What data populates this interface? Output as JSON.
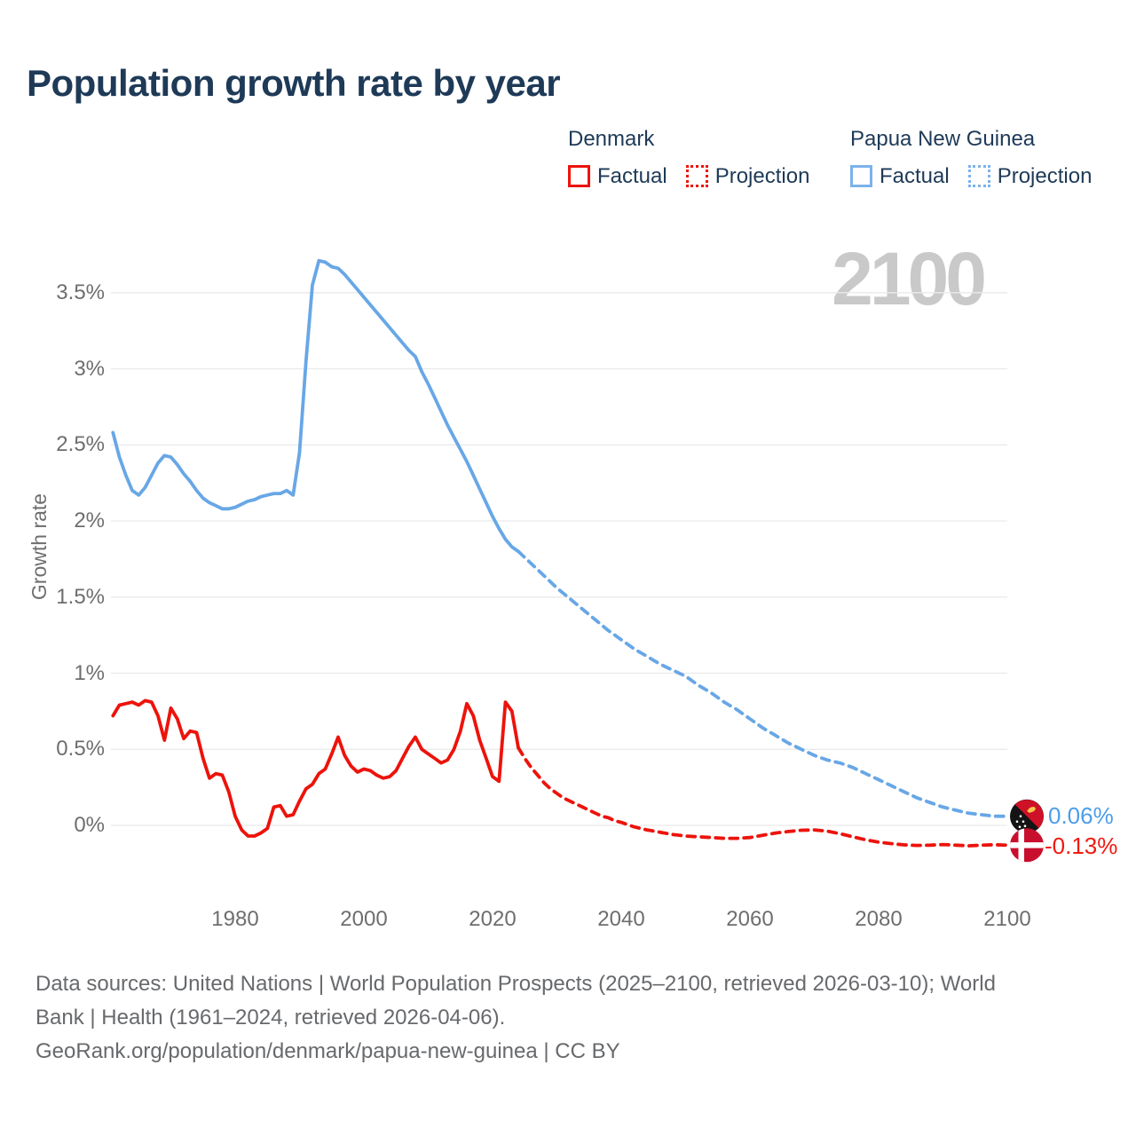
{
  "title": "Population growth rate by year",
  "watermark": "2100",
  "legend": {
    "groups": [
      {
        "name": "Denmark",
        "color": "#ec130b",
        "items": [
          {
            "label": "Factual",
            "style": "solid"
          },
          {
            "label": "Projection",
            "style": "dotted"
          }
        ]
      },
      {
        "name": "Papua New Guinea",
        "color": "#68a7e6",
        "items": [
          {
            "label": "Factual",
            "style": "solid"
          },
          {
            "label": "Projection",
            "style": "dotted"
          }
        ]
      }
    ]
  },
  "end_markers": [
    {
      "flag": "papua-new-guinea",
      "country": "Papua New Guinea",
      "value": 0.06,
      "label": "0.06%",
      "label_color": "#4d9de9"
    },
    {
      "flag": "denmark",
      "country": "Denmark",
      "value": -0.13,
      "label": "-0.13%",
      "label_color": "#f2190f"
    }
  ],
  "footer": {
    "lines": [
      "Data sources: United Nations | World Population Prospects (2025–2100, retrieved 2026-03-10); World",
      "Bank | Health (1961–2024, retrieved 2026-04-06).",
      "GeoRank.org/population/denmark/papua-new-guinea | CC BY"
    ]
  },
  "chart_data": {
    "type": "line",
    "title": "Population growth rate by year",
    "ylabel": "Growth rate",
    "xlabel": "",
    "grid": "horizontal",
    "legend_position": "top-right",
    "xlim": [
      1958,
      2114
    ],
    "ylim": [
      -0.35,
      3.9
    ],
    "x_ticks": [
      {
        "value": 1980,
        "label": "1980"
      },
      {
        "value": 2000,
        "label": "2000"
      },
      {
        "value": 2020,
        "label": "2020"
      },
      {
        "value": 2040,
        "label": "2040"
      },
      {
        "value": 2060,
        "label": "2060"
      },
      {
        "value": 2080,
        "label": "2080"
      },
      {
        "value": 2100,
        "label": "2100"
      }
    ],
    "y_ticks": [
      {
        "value": 0,
        "label": "0%"
      },
      {
        "value": 0.5,
        "label": "0.5%"
      },
      {
        "value": 1,
        "label": "1%"
      },
      {
        "value": 1.5,
        "label": "1.5%"
      },
      {
        "value": 2,
        "label": "2%"
      },
      {
        "value": 2.5,
        "label": "2.5%"
      },
      {
        "value": 3,
        "label": "3%"
      },
      {
        "value": 3.5,
        "label": "3.5%"
      }
    ],
    "series": [
      {
        "id": "png-factual",
        "name": "Papua New Guinea — Factual",
        "style": "factual",
        "color": "#68a7e6",
        "points": [
          [
            1961,
            2.58
          ],
          [
            1962,
            2.42
          ],
          [
            1963,
            2.3
          ],
          [
            1964,
            2.2
          ],
          [
            1965,
            2.17
          ],
          [
            1966,
            2.22
          ],
          [
            1967,
            2.3
          ],
          [
            1968,
            2.38
          ],
          [
            1969,
            2.43
          ],
          [
            1970,
            2.42
          ],
          [
            1971,
            2.37
          ],
          [
            1972,
            2.31
          ],
          [
            1973,
            2.26
          ],
          [
            1974,
            2.2
          ],
          [
            1975,
            2.15
          ],
          [
            1976,
            2.12
          ],
          [
            1977,
            2.1
          ],
          [
            1978,
            2.08
          ],
          [
            1979,
            2.08
          ],
          [
            1980,
            2.09
          ],
          [
            1981,
            2.11
          ],
          [
            1982,
            2.13
          ],
          [
            1983,
            2.14
          ],
          [
            1984,
            2.16
          ],
          [
            1985,
            2.17
          ],
          [
            1986,
            2.18
          ],
          [
            1987,
            2.18
          ],
          [
            1988,
            2.2
          ],
          [
            1989,
            2.17
          ],
          [
            1990,
            2.45
          ],
          [
            1991,
            3.05
          ],
          [
            1992,
            3.55
          ],
          [
            1993,
            3.71
          ],
          [
            1994,
            3.7
          ],
          [
            1995,
            3.67
          ],
          [
            1996,
            3.66
          ],
          [
            1997,
            3.62
          ],
          [
            1998,
            3.57
          ],
          [
            1999,
            3.52
          ],
          [
            2000,
            3.47
          ],
          [
            2001,
            3.42
          ],
          [
            2002,
            3.37
          ],
          [
            2003,
            3.32
          ],
          [
            2004,
            3.27
          ],
          [
            2005,
            3.22
          ],
          [
            2006,
            3.17
          ],
          [
            2007,
            3.12
          ],
          [
            2008,
            3.08
          ],
          [
            2009,
            2.98
          ],
          [
            2010,
            2.9
          ],
          [
            2011,
            2.81
          ],
          [
            2012,
            2.72
          ],
          [
            2013,
            2.63
          ],
          [
            2014,
            2.55
          ],
          [
            2015,
            2.47
          ],
          [
            2016,
            2.39
          ],
          [
            2017,
            2.3
          ],
          [
            2018,
            2.21
          ],
          [
            2019,
            2.12
          ],
          [
            2020,
            2.03
          ],
          [
            2021,
            1.95
          ],
          [
            2022,
            1.88
          ],
          [
            2023,
            1.83
          ],
          [
            2024,
            1.8
          ]
        ]
      },
      {
        "id": "png-projection",
        "name": "Papua New Guinea — Projection",
        "style": "projection",
        "color": "#68a7e6",
        "end_label": "0.06%",
        "points": [
          [
            2024,
            1.8
          ],
          [
            2026,
            1.72
          ],
          [
            2028,
            1.64
          ],
          [
            2030,
            1.56
          ],
          [
            2032,
            1.49
          ],
          [
            2034,
            1.42
          ],
          [
            2036,
            1.35
          ],
          [
            2038,
            1.28
          ],
          [
            2040,
            1.22
          ],
          [
            2042,
            1.16
          ],
          [
            2044,
            1.11
          ],
          [
            2046,
            1.06
          ],
          [
            2048,
            1.02
          ],
          [
            2050,
            0.98
          ],
          [
            2052,
            0.92
          ],
          [
            2054,
            0.87
          ],
          [
            2056,
            0.81
          ],
          [
            2058,
            0.76
          ],
          [
            2060,
            0.7
          ],
          [
            2062,
            0.64
          ],
          [
            2064,
            0.59
          ],
          [
            2066,
            0.54
          ],
          [
            2068,
            0.5
          ],
          [
            2070,
            0.46
          ],
          [
            2072,
            0.43
          ],
          [
            2074,
            0.41
          ],
          [
            2076,
            0.38
          ],
          [
            2078,
            0.34
          ],
          [
            2080,
            0.3
          ],
          [
            2082,
            0.26
          ],
          [
            2084,
            0.22
          ],
          [
            2086,
            0.18
          ],
          [
            2088,
            0.15
          ],
          [
            2090,
            0.12
          ],
          [
            2092,
            0.1
          ],
          [
            2094,
            0.08
          ],
          [
            2096,
            0.07
          ],
          [
            2098,
            0.06
          ],
          [
            2100,
            0.06
          ]
        ]
      },
      {
        "id": "denmark-factual",
        "name": "Denmark — Factual",
        "style": "factual",
        "color": "#ec130b",
        "points": [
          [
            1961,
            0.72
          ],
          [
            1962,
            0.79
          ],
          [
            1963,
            0.8
          ],
          [
            1964,
            0.81
          ],
          [
            1965,
            0.79
          ],
          [
            1966,
            0.82
          ],
          [
            1967,
            0.81
          ],
          [
            1968,
            0.72
          ],
          [
            1969,
            0.56
          ],
          [
            1970,
            0.77
          ],
          [
            1971,
            0.7
          ],
          [
            1972,
            0.57
          ],
          [
            1973,
            0.62
          ],
          [
            1974,
            0.61
          ],
          [
            1975,
            0.44
          ],
          [
            1976,
            0.31
          ],
          [
            1977,
            0.34
          ],
          [
            1978,
            0.33
          ],
          [
            1979,
            0.22
          ],
          [
            1980,
            0.06
          ],
          [
            1981,
            -0.03
          ],
          [
            1982,
            -0.07
          ],
          [
            1983,
            -0.07
          ],
          [
            1984,
            -0.05
          ],
          [
            1985,
            -0.02
          ],
          [
            1986,
            0.12
          ],
          [
            1987,
            0.13
          ],
          [
            1988,
            0.06
          ],
          [
            1989,
            0.07
          ],
          [
            1990,
            0.16
          ],
          [
            1991,
            0.24
          ],
          [
            1992,
            0.27
          ],
          [
            1993,
            0.34
          ],
          [
            1994,
            0.37
          ],
          [
            1995,
            0.47
          ],
          [
            1996,
            0.58
          ],
          [
            1997,
            0.46
          ],
          [
            1998,
            0.39
          ],
          [
            1999,
            0.35
          ],
          [
            2000,
            0.37
          ],
          [
            2001,
            0.36
          ],
          [
            2002,
            0.33
          ],
          [
            2003,
            0.31
          ],
          [
            2004,
            0.32
          ],
          [
            2005,
            0.36
          ],
          [
            2006,
            0.44
          ],
          [
            2007,
            0.52
          ],
          [
            2008,
            0.58
          ],
          [
            2009,
            0.5
          ],
          [
            2010,
            0.47
          ],
          [
            2011,
            0.44
          ],
          [
            2012,
            0.41
          ],
          [
            2013,
            0.43
          ],
          [
            2014,
            0.5
          ],
          [
            2015,
            0.62
          ],
          [
            2016,
            0.8
          ],
          [
            2017,
            0.72
          ],
          [
            2018,
            0.56
          ],
          [
            2019,
            0.44
          ],
          [
            2020,
            0.32
          ],
          [
            2021,
            0.29
          ],
          [
            2022,
            0.81
          ],
          [
            2023,
            0.75
          ],
          [
            2024,
            0.51
          ]
        ]
      },
      {
        "id": "denmark-projection",
        "name": "Denmark — Projection",
        "style": "projection",
        "color": "#ec130b",
        "end_label": "-0.13%",
        "points": [
          [
            2024,
            0.51
          ],
          [
            2025,
            0.44
          ],
          [
            2026,
            0.38
          ],
          [
            2027,
            0.33
          ],
          [
            2028,
            0.28
          ],
          [
            2029,
            0.24
          ],
          [
            2030,
            0.21
          ],
          [
            2031,
            0.18
          ],
          [
            2032,
            0.16
          ],
          [
            2033,
            0.14
          ],
          [
            2034,
            0.12
          ],
          [
            2035,
            0.1
          ],
          [
            2036,
            0.08
          ],
          [
            2037,
            0.06
          ],
          [
            2038,
            0.05
          ],
          [
            2039,
            0.03
          ],
          [
            2040,
            0.02
          ],
          [
            2042,
            -0.01
          ],
          [
            2044,
            -0.03
          ],
          [
            2046,
            -0.045
          ],
          [
            2048,
            -0.06
          ],
          [
            2050,
            -0.07
          ],
          [
            2052,
            -0.075
          ],
          [
            2054,
            -0.08
          ],
          [
            2056,
            -0.085
          ],
          [
            2058,
            -0.085
          ],
          [
            2060,
            -0.08
          ],
          [
            2062,
            -0.065
          ],
          [
            2064,
            -0.05
          ],
          [
            2066,
            -0.04
          ],
          [
            2068,
            -0.032
          ],
          [
            2070,
            -0.03
          ],
          [
            2072,
            -0.038
          ],
          [
            2074,
            -0.055
          ],
          [
            2076,
            -0.075
          ],
          [
            2078,
            -0.095
          ],
          [
            2080,
            -0.11
          ],
          [
            2082,
            -0.12
          ],
          [
            2084,
            -0.128
          ],
          [
            2086,
            -0.132
          ],
          [
            2088,
            -0.13
          ],
          [
            2090,
            -0.126
          ],
          [
            2092,
            -0.13
          ],
          [
            2094,
            -0.134
          ],
          [
            2096,
            -0.13
          ],
          [
            2098,
            -0.127
          ],
          [
            2100,
            -0.13
          ]
        ]
      }
    ]
  }
}
